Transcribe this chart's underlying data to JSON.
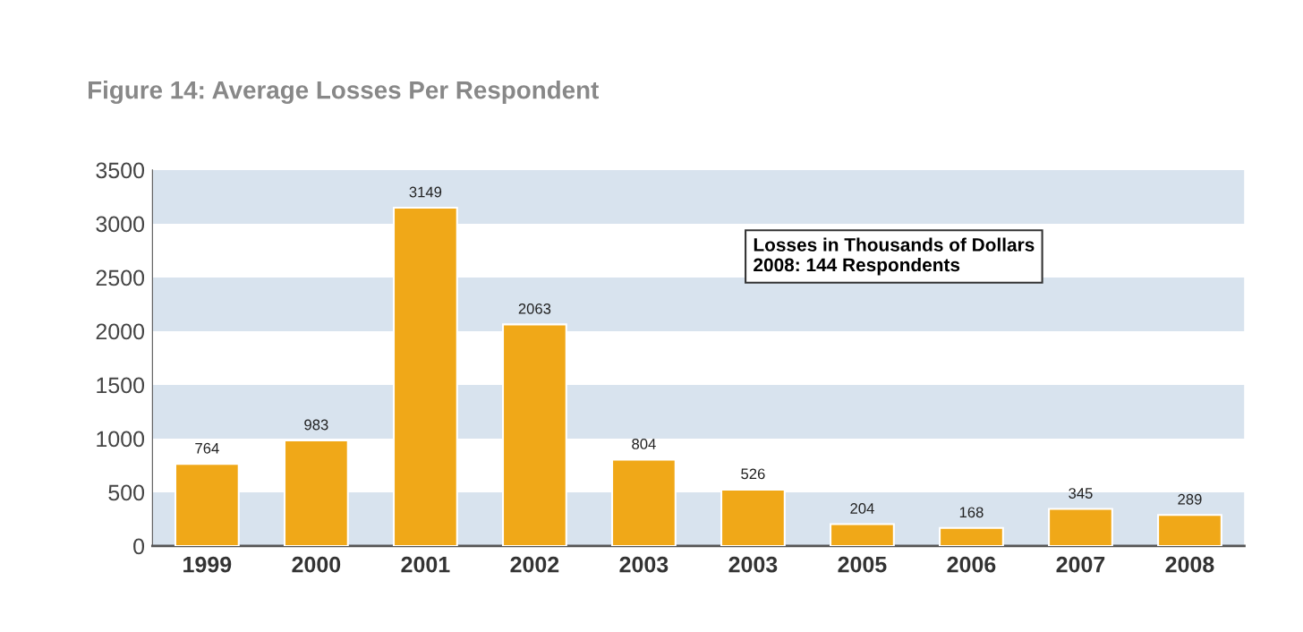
{
  "chart_data": {
    "type": "bar",
    "title": "Figure 14: Average Losses Per Respondent",
    "categories": [
      "1999",
      "2000",
      "2001",
      "2002",
      "2003",
      "2003",
      "2005",
      "2006",
      "2007",
      "2008"
    ],
    "values": [
      764,
      983,
      3149,
      2063,
      804,
      526,
      204,
      168,
      345,
      289
    ],
    "color": "#f0a818",
    "ylim": [
      0,
      3500
    ],
    "yticks": [
      0,
      500,
      1000,
      1500,
      2000,
      2500,
      3000,
      3500
    ],
    "bands": [
      {
        "axis": "y",
        "from": 0,
        "to": 500,
        "color": "#d8e3ee"
      },
      {
        "axis": "y",
        "from": 1000,
        "to": 1500,
        "color": "#d8e3ee"
      },
      {
        "axis": "y",
        "from": 2000,
        "to": 2500,
        "color": "#d8e3ee"
      },
      {
        "axis": "y",
        "from": 3000,
        "to": 3500,
        "color": "#d8e3ee"
      }
    ],
    "data_labels": true,
    "annotations": [
      "Losses in Thousands of Dollars\n2008: 144 Respondents"
    ]
  }
}
